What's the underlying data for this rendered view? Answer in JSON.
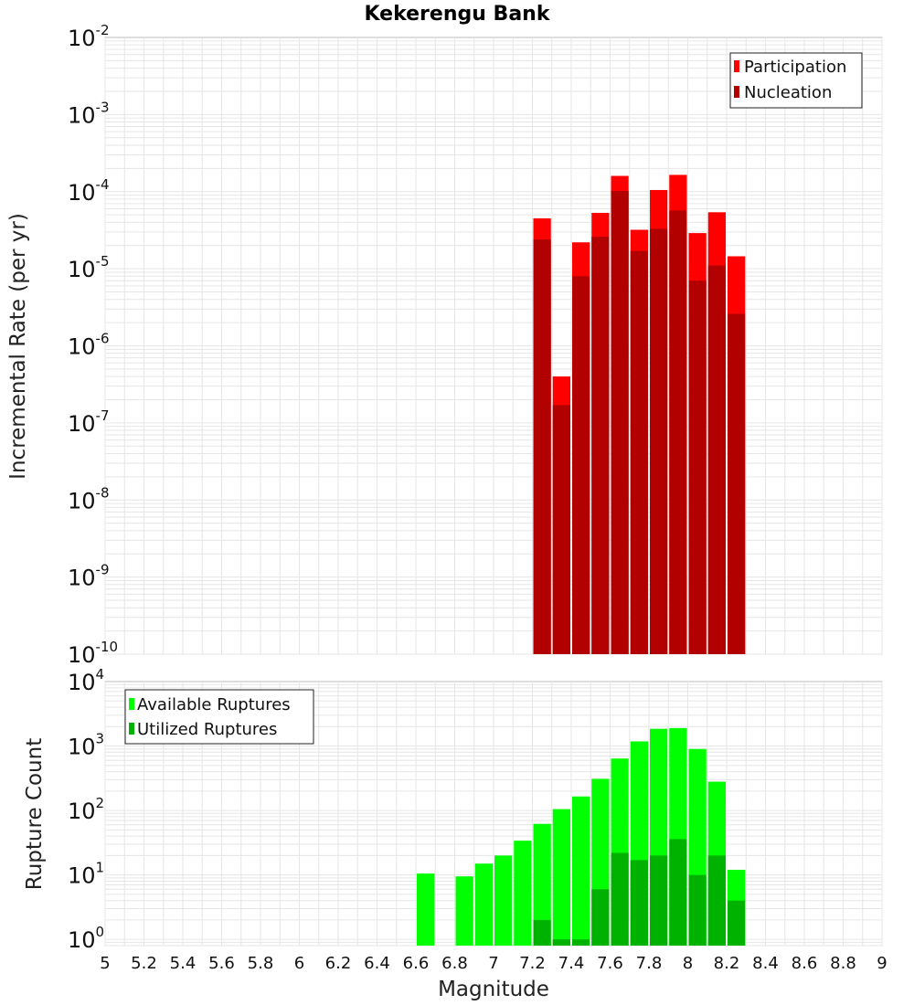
{
  "title": "Kekerengu Bank",
  "colors": {
    "participation": "#ff0000",
    "nucleation": "#b20000",
    "available": "#00ff00",
    "utilized": "#00b200",
    "grid": "#e6e6e6",
    "frame": "#bbbbbb"
  },
  "chart_data": [
    {
      "type": "bar",
      "name": "rate-panel",
      "ylabel": "Incremental Rate (per yr)",
      "yscale": "log",
      "ylim": [
        1e-10,
        0.01
      ],
      "yticks": [
        {
          "base": "10",
          "exp": "-2",
          "v": 0.01
        },
        {
          "base": "10",
          "exp": "-3",
          "v": 0.001
        },
        {
          "base": "10",
          "exp": "-4",
          "v": 0.0001
        },
        {
          "base": "10",
          "exp": "-5",
          "v": 1e-05
        },
        {
          "base": "10",
          "exp": "-6",
          "v": 1e-06
        },
        {
          "base": "10",
          "exp": "-7",
          "v": 1e-07
        },
        {
          "base": "10",
          "exp": "-8",
          "v": 1e-08
        },
        {
          "base": "10",
          "exp": "-9",
          "v": 1e-09
        },
        {
          "base": "10",
          "exp": "-10",
          "v": 1e-10
        }
      ],
      "legend": [
        "Participation",
        "Nucleation"
      ],
      "legend_position": "top-right",
      "grid": true,
      "x": [
        7.25,
        7.35,
        7.45,
        7.55,
        7.65,
        7.75,
        7.85,
        7.95,
        8.05,
        8.15,
        8.25
      ],
      "series": [
        {
          "name": "Participation",
          "color": "#ff0000",
          "values": [
            4.5e-05,
            4e-07,
            2.2e-05,
            5.3e-05,
            0.00016,
            3.2e-05,
            0.000105,
            0.000165,
            2.9e-05,
            5.4e-05,
            1.45e-05
          ]
        },
        {
          "name": "Nucleation",
          "color": "#b20000",
          "values": [
            2.4e-05,
            1.7e-07,
            8e-06,
            2.6e-05,
            0.000102,
            1.7e-05,
            3.3e-05,
            5.7e-05,
            7e-06,
            1.1e-05,
            2.6e-06
          ]
        }
      ]
    },
    {
      "type": "bar",
      "name": "count-panel",
      "ylabel": "Rupture Count",
      "yscale": "log",
      "ylim": [
        0.8,
        10000
      ],
      "yticks": [
        {
          "base": "10",
          "exp": "4",
          "v": 10000
        },
        {
          "base": "10",
          "exp": "3",
          "v": 1000
        },
        {
          "base": "10",
          "exp": "2",
          "v": 100
        },
        {
          "base": "10",
          "exp": "1",
          "v": 10
        },
        {
          "base": "10",
          "exp": "0",
          "v": 1
        }
      ],
      "legend": [
        "Available Ruptures",
        "Utilized Ruptures"
      ],
      "legend_position": "top-left",
      "grid": true,
      "x": [
        6.65,
        6.85,
        6.95,
        7.05,
        7.15,
        7.25,
        7.35,
        7.45,
        7.55,
        7.65,
        7.75,
        7.85,
        7.95,
        8.05,
        8.15,
        8.25
      ],
      "series": [
        {
          "name": "Available Ruptures",
          "color": "#00ff00",
          "values": [
            10.5,
            9.5,
            15,
            20,
            34,
            62,
            105,
            165,
            310,
            640,
            1180,
            1850,
            1900,
            900,
            280,
            12
          ]
        },
        {
          "name": "Utilized Ruptures",
          "color": "#00b200",
          "values": [
            0,
            0,
            0,
            0,
            0,
            2,
            1,
            1,
            6,
            22,
            17,
            20,
            36,
            10,
            20,
            4
          ]
        }
      ]
    }
  ],
  "xaxis": {
    "label": "Magnitude",
    "xlim": [
      5,
      9
    ],
    "ticks": [
      "5",
      "5.2",
      "5.4",
      "5.6",
      "5.8",
      "6",
      "6.2",
      "6.4",
      "6.6",
      "6.8",
      "7",
      "7.2",
      "7.4",
      "7.6",
      "7.8",
      "8",
      "8.2",
      "8.4",
      "8.6",
      "8.8",
      "9"
    ],
    "bar_width": 0.1
  }
}
